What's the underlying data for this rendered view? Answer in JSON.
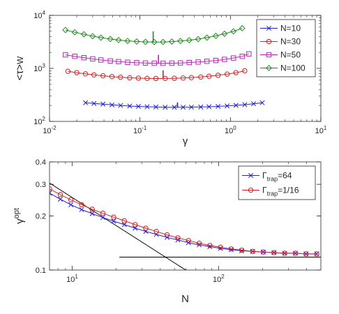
{
  "chart_data": [
    {
      "type": "line",
      "xscale": "log",
      "yscale": "log",
      "xlim": [
        0.01,
        10
      ],
      "ylim": [
        100,
        10000
      ],
      "xlabel": "γ",
      "ylabel": "<τ>W",
      "xtick_bases": [
        "10",
        "10",
        "10",
        "10"
      ],
      "xtick_exps": [
        "-2",
        "-1",
        "0",
        "1"
      ],
      "ytick_bases": [
        "10",
        "10",
        "10"
      ],
      "ytick_exps": [
        "2",
        "3",
        "4"
      ],
      "legend_position": "top-right",
      "series": [
        {
          "name": "N=10",
          "color": "#1f1fd6",
          "marker": "x",
          "x": [
            0.025,
            0.031,
            0.039,
            0.049,
            0.061,
            0.077,
            0.096,
            0.12,
            0.15,
            0.19,
            0.24,
            0.3,
            0.37,
            0.47,
            0.58,
            0.73,
            0.92,
            1.15,
            1.44,
            1.8,
            2.25
          ],
          "y": [
            225,
            218,
            212,
            205,
            200,
            195,
            192,
            189,
            187,
            185,
            185,
            185,
            186,
            187,
            189,
            192,
            196,
            201,
            207,
            215,
            225
          ]
        },
        {
          "name": "N=30",
          "color": "#d62020",
          "marker": "o",
          "x": [
            0.016,
            0.02,
            0.025,
            0.031,
            0.039,
            0.049,
            0.061,
            0.077,
            0.096,
            0.12,
            0.15,
            0.19,
            0.24,
            0.3,
            0.37,
            0.47,
            0.58,
            0.73,
            0.92,
            1.15,
            1.44
          ],
          "y": [
            880,
            830,
            790,
            755,
            725,
            700,
            680,
            665,
            655,
            648,
            645,
            646,
            650,
            658,
            670,
            688,
            712,
            742,
            780,
            830,
            900
          ]
        },
        {
          "name": "N=50",
          "color": "#c21fc2",
          "marker": "s",
          "x": [
            0.015,
            0.019,
            0.024,
            0.03,
            0.037,
            0.047,
            0.058,
            0.073,
            0.092,
            0.115,
            0.144,
            0.18,
            0.225,
            0.28,
            0.35,
            0.44,
            0.55,
            0.69,
            0.86,
            1.08,
            1.35,
            1.6
          ],
          "y": [
            1800,
            1690,
            1590,
            1510,
            1440,
            1385,
            1340,
            1305,
            1280,
            1262,
            1252,
            1250,
            1255,
            1268,
            1290,
            1320,
            1360,
            1410,
            1480,
            1570,
            1690,
            1880
          ]
        },
        {
          "name": "N=100",
          "color": "#1e8c1e",
          "marker": "d",
          "x": [
            0.015,
            0.019,
            0.024,
            0.03,
            0.037,
            0.047,
            0.058,
            0.073,
            0.092,
            0.115,
            0.144,
            0.18,
            0.225,
            0.28,
            0.35,
            0.44,
            0.55,
            0.69,
            0.86,
            1.08,
            1.35
          ],
          "y": [
            5300,
            4800,
            4400,
            4050,
            3800,
            3580,
            3420,
            3300,
            3210,
            3160,
            3140,
            3150,
            3200,
            3280,
            3400,
            3570,
            3800,
            4100,
            4500,
            5000,
            5700
          ]
        }
      ],
      "optimum_markers": [
        {
          "color": "#1e8c1e",
          "x": 0.14,
          "y_low": 3140,
          "y_high": 5000
        },
        {
          "color": "#c21fc2",
          "x": 0.16,
          "y_low": 1250,
          "y_high": 1800
        },
        {
          "color": "#d62020",
          "x": 0.18,
          "y_low": 645,
          "y_high": 920
        },
        {
          "color": "#1f1fd6",
          "x": 0.26,
          "y_low": 185,
          "y_high": 228
        }
      ]
    },
    {
      "type": "line",
      "xscale": "log",
      "yscale": "log",
      "xlim": [
        7,
        500
      ],
      "ylim": [
        0.1,
        0.4
      ],
      "xlabel": "N",
      "ylabel": "γopt",
      "xtick_values": [
        10,
        100
      ],
      "xtick_bases": [
        "10",
        "10"
      ],
      "xtick_exps": [
        "1",
        "2"
      ],
      "ytick_values": [
        0.1,
        0.2,
        0.3,
        0.4
      ],
      "ytick_labels": [
        "0.1",
        "0.2",
        "0.3",
        "0.4"
      ],
      "legend_position": "top-right",
      "series": [
        {
          "name": "Γtrap=64",
          "color": "#1f1fd6",
          "marker": "x",
          "x": [
            7,
            8.3,
            9.8,
            11.6,
            13.7,
            16.2,
            19.2,
            22.7,
            26.9,
            31.8,
            37.6,
            44.5,
            52.7,
            62.3,
            73.7,
            87.2,
            103,
            122,
            144,
            171,
            202,
            239,
            283,
            335,
            396,
            469
          ],
          "y": [
            0.268,
            0.248,
            0.231,
            0.217,
            0.206,
            0.196,
            0.187,
            0.179,
            0.171,
            0.164,
            0.158,
            0.152,
            0.147,
            0.142,
            0.138,
            0.135,
            0.132,
            0.13,
            0.128,
            0.127,
            0.126,
            0.125,
            0.124,
            0.124,
            0.123,
            0.123
          ]
        },
        {
          "name": "Γtrap=1/16",
          "color": "#d62020",
          "marker": "o",
          "x": [
            7,
            8.3,
            9.8,
            11.6,
            13.7,
            16.2,
            19.2,
            22.7,
            26.9,
            31.8,
            37.6,
            44.5,
            52.7,
            62.3,
            73.7,
            87.2,
            103,
            122,
            144,
            171,
            202,
            239,
            283,
            335,
            396,
            469
          ],
          "y": [
            0.283,
            0.263,
            0.246,
            0.231,
            0.218,
            0.207,
            0.197,
            0.188,
            0.179,
            0.171,
            0.164,
            0.157,
            0.151,
            0.146,
            0.141,
            0.137,
            0.134,
            0.131,
            0.129,
            0.127,
            0.126,
            0.125,
            0.124,
            0.124,
            0.123,
            0.123
          ]
        }
      ],
      "asymptotes": [
        {
          "color": "#000000",
          "x": [
            7,
            62
          ],
          "y": [
            0.305,
            0.098
          ]
        },
        {
          "color": "#000000",
          "x": [
            21,
            500
          ],
          "y": [
            0.118,
            0.118
          ]
        }
      ]
    }
  ]
}
